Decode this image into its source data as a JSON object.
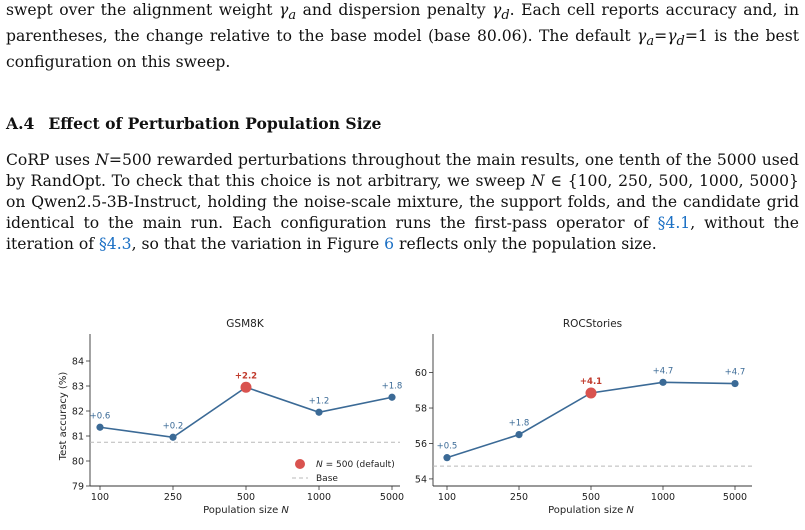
{
  "paragraph_top": {
    "line1_pre": "swept over the alignment weight ",
    "gamma_a": "γ",
    "sub_a": "a",
    "line1_mid": " and dispersion penalty ",
    "gamma_d": "γ",
    "sub_d": "d",
    "line1_post": ". Each cell reports accuracy",
    "line2": "and, in parentheses, the change relative to the base model (base 80.06). The default ",
    "eq_text": "=γ",
    "eq_sub": "d",
    "eq_val": "=1",
    "line3": "is the best configuration on this sweep."
  },
  "section": {
    "number": "A.4",
    "title": "Effect of Perturbation Population Size"
  },
  "paragraph_main": {
    "s1": "CoRP uses ",
    "N": "N",
    "s2": "=500 rewarded perturbations throughout the main results, one tenth of the 5000 used by RandOpt.  To check that this choice is not arbitrary, we sweep ",
    "N2": "N",
    "s3": " ∈ {100, 250, 500, 1000, 5000} on Qwen2.5-3B-Instruct, holding the noise-scale mixture, the support folds, and the candidate grid identical to the main run. Each configuration runs the first-pass operator of ",
    "ref1": "§4.1",
    "s4": ", without the iteration of ",
    "ref2": "§4.3",
    "s5": ", so that the variation in Figure ",
    "ref3": "6",
    "s6": " reflects only the population size."
  },
  "chart_data": [
    {
      "type": "line",
      "title": "GSM8K",
      "xlabel": "Population size N",
      "ylabel": "Test accuracy (%)",
      "categories": [
        "100",
        "250",
        "500",
        "1000",
        "5000"
      ],
      "values": [
        81.35,
        80.95,
        82.95,
        81.95,
        82.55
      ],
      "labels": [
        "+0.6",
        "+0.2",
        "+2.2",
        "+1.2",
        "+1.8"
      ],
      "highlight_index": 2,
      "base": 80.75,
      "ylim": [
        79,
        84.6
      ],
      "yticks": [
        79,
        80,
        81,
        82,
        83,
        84
      ],
      "legend": {
        "position": "lower-right",
        "marker_label": "N = 500 (default)",
        "base_label": "Base"
      },
      "colors": {
        "line": "#3b6a96",
        "highlight": "#d9534f",
        "base": "#b9b9b9"
      }
    },
    {
      "type": "line",
      "title": "ROCStories",
      "xlabel": "Population size N",
      "ylabel": "",
      "categories": [
        "100",
        "250",
        "500",
        "1000",
        "5000"
      ],
      "values": [
        55.2,
        56.5,
        58.85,
        59.45,
        59.38
      ],
      "labels": [
        "+0.5",
        "+1.8",
        "+4.1",
        "+4.7",
        "+4.7"
      ],
      "highlight_index": 2,
      "base": 54.72,
      "ylim": [
        53.6,
        61.5
      ],
      "yticks": [
        54,
        56,
        58,
        60
      ],
      "colors": {
        "line": "#3b6a96",
        "highlight": "#d9534f",
        "base": "#b9b9b9"
      }
    }
  ]
}
